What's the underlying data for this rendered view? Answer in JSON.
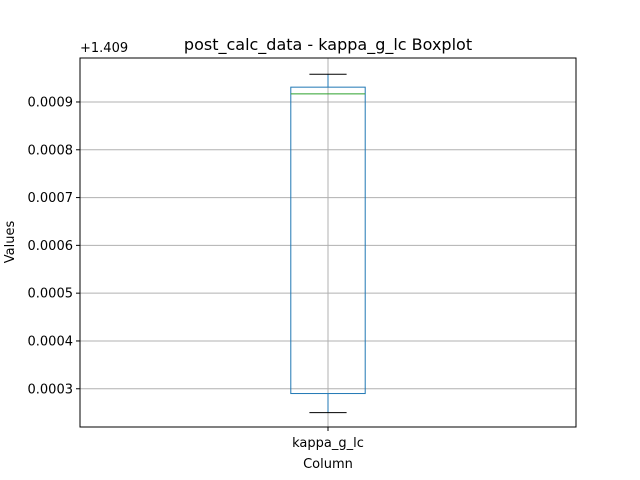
{
  "chart_data": {
    "type": "boxplot",
    "title": "post_calc_data - kappa_g_lc Boxplot",
    "xlabel": "Column",
    "ylabel": "Values",
    "offset_label": "+1.409",
    "categories": [
      "kappa_g_lc"
    ],
    "boxes": [
      {
        "category": "kappa_g_lc",
        "whisker_low": 0.00025,
        "q1": 0.00029,
        "median": 0.000917,
        "q3": 0.000931,
        "whisker_high": 0.000958
      }
    ],
    "ylim": [
      0.00022,
      0.000992
    ],
    "yticks": [
      0.0003,
      0.0004,
      0.0005,
      0.0006,
      0.0007,
      0.0008,
      0.0009
    ],
    "ytick_labels": [
      "0.0003",
      "0.0004",
      "0.0005",
      "0.0006",
      "0.0007",
      "0.0008",
      "0.0009"
    ],
    "grid": true,
    "colors": {
      "box": "#1f77b4",
      "median": "#2ca02c",
      "whisker": "#1f77b4",
      "cap": "#000000",
      "grid": "#b0b0b0",
      "axes": "#000000"
    }
  }
}
